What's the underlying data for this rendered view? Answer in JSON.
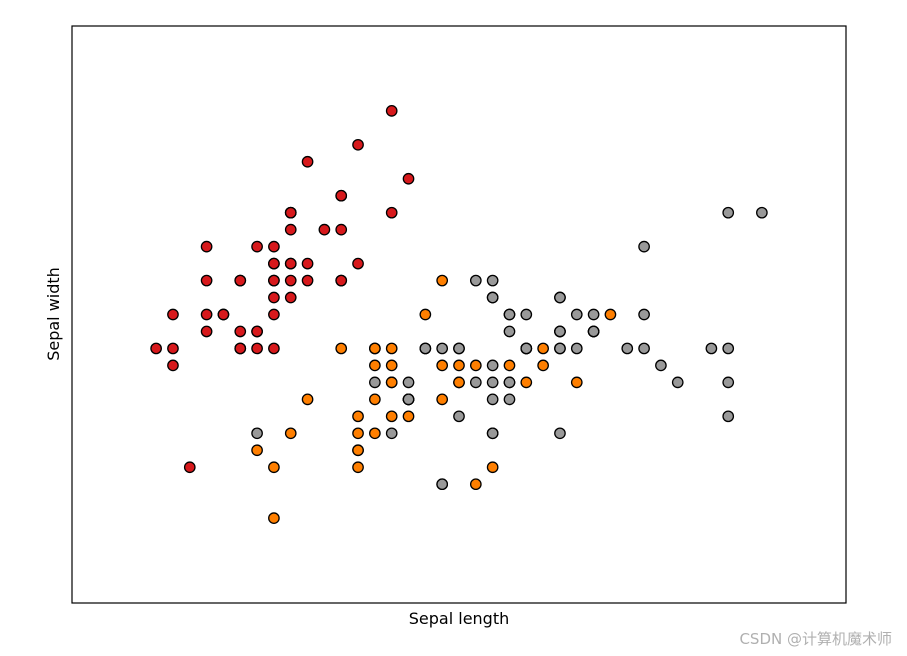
{
  "watermark": "CSDN @计算机魔术师",
  "chart_data": {
    "type": "scatter",
    "title": "",
    "xlabel": "Sepal length",
    "ylabel": "Sepal width",
    "xlim": [
      3.8,
      8.4
    ],
    "ylim": [
      1.5,
      4.9
    ],
    "xticks": [],
    "yticks": [],
    "grid": false,
    "legend": "none",
    "marker_edge_color": "#000000",
    "series": [
      {
        "color": "#d7191c",
        "points": [
          [
            5.1,
            3.5
          ],
          [
            4.9,
            3.0
          ],
          [
            4.7,
            3.2
          ],
          [
            4.6,
            3.1
          ],
          [
            5.0,
            3.6
          ],
          [
            5.4,
            3.9
          ],
          [
            4.6,
            3.4
          ],
          [
            5.0,
            3.4
          ],
          [
            4.4,
            2.9
          ],
          [
            4.9,
            3.1
          ],
          [
            5.4,
            3.7
          ],
          [
            4.8,
            3.4
          ],
          [
            4.8,
            3.0
          ],
          [
            4.3,
            3.0
          ],
          [
            5.8,
            4.0
          ],
          [
            5.7,
            4.4
          ],
          [
            5.4,
            3.9
          ],
          [
            5.1,
            3.5
          ],
          [
            5.7,
            3.8
          ],
          [
            5.1,
            3.8
          ],
          [
            5.4,
            3.4
          ],
          [
            5.1,
            3.7
          ],
          [
            4.6,
            3.6
          ],
          [
            5.1,
            3.3
          ],
          [
            4.8,
            3.4
          ],
          [
            5.0,
            3.0
          ],
          [
            5.0,
            3.4
          ],
          [
            5.2,
            3.5
          ],
          [
            5.2,
            3.4
          ],
          [
            4.7,
            3.2
          ],
          [
            4.8,
            3.1
          ],
          [
            5.4,
            3.4
          ],
          [
            5.2,
            4.1
          ],
          [
            5.5,
            4.2
          ],
          [
            4.9,
            3.1
          ],
          [
            5.0,
            3.2
          ],
          [
            5.5,
            3.5
          ],
          [
            4.9,
            3.6
          ],
          [
            4.4,
            3.0
          ],
          [
            5.1,
            3.4
          ],
          [
            5.0,
            3.5
          ],
          [
            4.5,
            2.3
          ],
          [
            4.4,
            3.2
          ],
          [
            5.0,
            3.5
          ],
          [
            5.1,
            3.8
          ],
          [
            4.8,
            3.0
          ],
          [
            5.1,
            3.8
          ],
          [
            4.6,
            3.2
          ],
          [
            5.3,
            3.7
          ],
          [
            5.0,
            3.3
          ]
        ]
      },
      {
        "color": "#ff7f00",
        "points": [
          [
            7.0,
            3.2
          ],
          [
            6.4,
            3.2
          ],
          [
            6.9,
            3.1
          ],
          [
            5.5,
            2.3
          ],
          [
            6.5,
            2.8
          ],
          [
            5.7,
            2.8
          ],
          [
            6.3,
            3.3
          ],
          [
            4.9,
            2.4
          ],
          [
            6.6,
            2.9
          ],
          [
            5.2,
            2.7
          ],
          [
            5.0,
            2.0
          ],
          [
            5.9,
            3.0
          ],
          [
            6.0,
            2.2
          ],
          [
            6.1,
            2.9
          ],
          [
            5.6,
            2.9
          ],
          [
            6.7,
            3.1
          ],
          [
            5.6,
            3.0
          ],
          [
            5.8,
            2.7
          ],
          [
            6.2,
            2.2
          ],
          [
            5.6,
            2.5
          ],
          [
            5.9,
            3.2
          ],
          [
            6.1,
            2.8
          ],
          [
            6.3,
            2.5
          ],
          [
            6.1,
            2.8
          ],
          [
            6.4,
            2.9
          ],
          [
            6.6,
            3.0
          ],
          [
            6.8,
            2.8
          ],
          [
            6.7,
            3.0
          ],
          [
            6.0,
            2.9
          ],
          [
            5.7,
            2.6
          ],
          [
            5.5,
            2.4
          ],
          [
            5.5,
            2.4
          ],
          [
            5.8,
            2.7
          ],
          [
            6.0,
            2.7
          ],
          [
            5.4,
            3.0
          ],
          [
            6.0,
            3.4
          ],
          [
            6.7,
            3.1
          ],
          [
            6.3,
            2.3
          ],
          [
            5.6,
            3.0
          ],
          [
            5.5,
            2.5
          ],
          [
            5.5,
            2.6
          ],
          [
            6.1,
            3.0
          ],
          [
            5.8,
            2.6
          ],
          [
            5.0,
            2.3
          ],
          [
            5.6,
            2.7
          ],
          [
            5.7,
            3.0
          ],
          [
            5.7,
            2.9
          ],
          [
            6.2,
            2.9
          ],
          [
            5.1,
            2.5
          ],
          [
            5.7,
            2.8
          ]
        ]
      },
      {
        "color": "#999999",
        "points": [
          [
            6.3,
            3.3
          ],
          [
            5.8,
            2.7
          ],
          [
            7.1,
            3.0
          ],
          [
            6.3,
            2.9
          ],
          [
            6.5,
            3.0
          ],
          [
            7.6,
            3.0
          ],
          [
            4.9,
            2.5
          ],
          [
            7.3,
            2.9
          ],
          [
            6.7,
            2.5
          ],
          [
            7.2,
            3.6
          ],
          [
            6.5,
            3.2
          ],
          [
            6.4,
            2.7
          ],
          [
            6.8,
            3.0
          ],
          [
            5.7,
            2.5
          ],
          [
            5.8,
            2.8
          ],
          [
            6.4,
            3.2
          ],
          [
            6.5,
            3.0
          ],
          [
            7.7,
            3.8
          ],
          [
            7.7,
            2.6
          ],
          [
            6.0,
            2.2
          ],
          [
            6.9,
            3.2
          ],
          [
            5.6,
            2.8
          ],
          [
            7.7,
            2.8
          ],
          [
            6.3,
            2.7
          ],
          [
            6.7,
            3.3
          ],
          [
            7.2,
            3.2
          ],
          [
            6.2,
            2.8
          ],
          [
            6.1,
            3.0
          ],
          [
            6.4,
            2.8
          ],
          [
            7.2,
            3.0
          ],
          [
            7.4,
            2.8
          ],
          [
            7.9,
            3.8
          ],
          [
            6.4,
            2.8
          ],
          [
            6.3,
            2.8
          ],
          [
            6.1,
            2.6
          ],
          [
            7.7,
            3.0
          ],
          [
            6.3,
            3.4
          ],
          [
            6.4,
            3.1
          ],
          [
            6.0,
            3.0
          ],
          [
            6.9,
            3.1
          ],
          [
            6.7,
            3.1
          ],
          [
            6.9,
            3.1
          ],
          [
            5.8,
            2.7
          ],
          [
            6.8,
            3.2
          ],
          [
            6.7,
            3.3
          ],
          [
            6.7,
            3.0
          ],
          [
            6.3,
            2.5
          ],
          [
            6.5,
            3.0
          ],
          [
            6.2,
            3.4
          ],
          [
            5.9,
            3.0
          ]
        ]
      }
    ]
  }
}
